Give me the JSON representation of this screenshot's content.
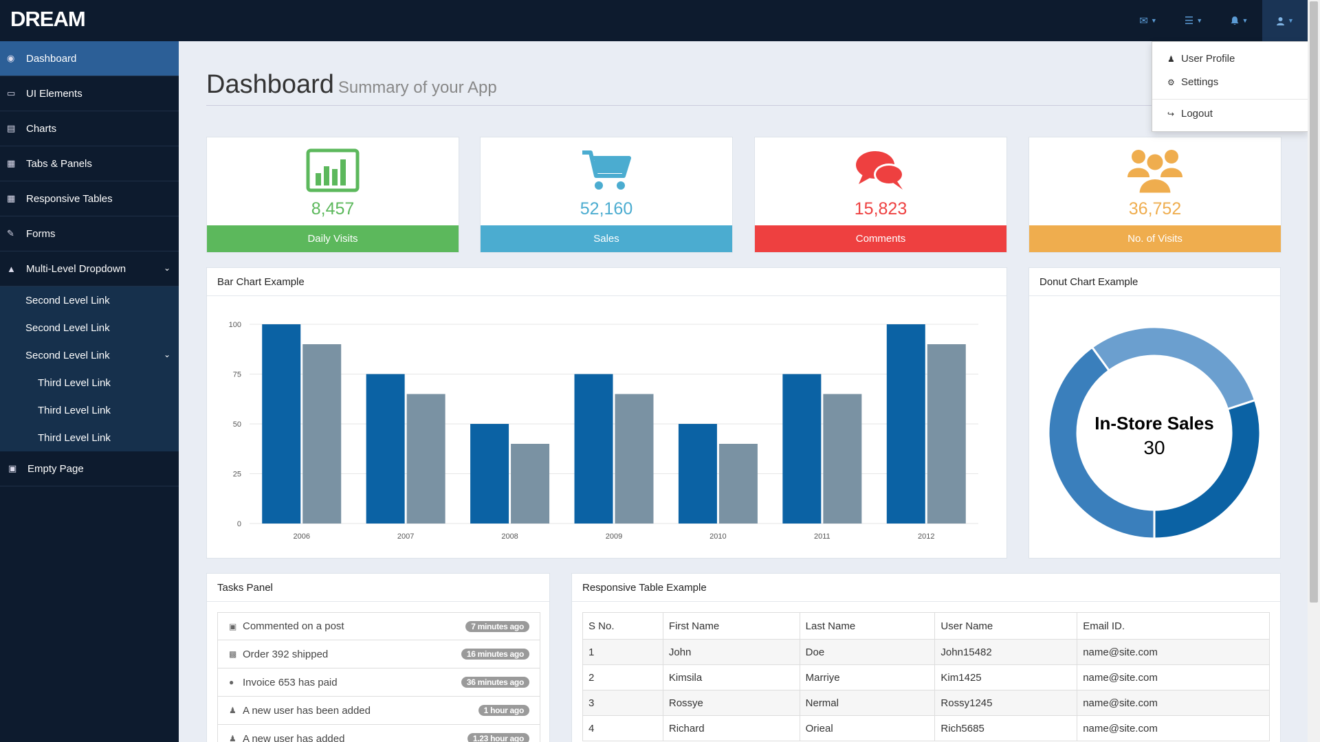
{
  "brand": "DREAM",
  "colors": {
    "topbar": "#0d1b2e",
    "accent": "#2c5f97",
    "green": "#5cb85c",
    "blue": "#4bacd0",
    "red": "#ee4040",
    "orange": "#efad4e"
  },
  "topnav": {
    "icons": [
      "envelope-icon",
      "tasks-icon",
      "bell-icon",
      "user-icon"
    ]
  },
  "user_menu": {
    "profile": "User Profile",
    "settings": "Settings",
    "logout": "Logout"
  },
  "sidebar": {
    "items": [
      {
        "label": "Dashboard",
        "icon": "dashboard-icon"
      },
      {
        "label": "UI Elements",
        "icon": "desktop-icon"
      },
      {
        "label": "Charts",
        "icon": "bar-chart-icon"
      },
      {
        "label": "Tabs & Panels",
        "icon": "tabs-icon"
      },
      {
        "label": "Responsive Tables",
        "icon": "table-icon"
      },
      {
        "label": "Forms",
        "icon": "edit-icon"
      },
      {
        "label": "Multi-Level Dropdown",
        "icon": "sitemap-icon"
      },
      {
        "label": "Empty Page",
        "icon": "file-icon"
      }
    ],
    "second_level": [
      "Second Level Link",
      "Second Level Link",
      "Second Level Link"
    ],
    "third_level": [
      "Third Level Link",
      "Third Level Link",
      "Third Level Link"
    ]
  },
  "header": {
    "title": "Dashboard",
    "subtitle": "Summary of your App"
  },
  "stats": [
    {
      "value": "8,457",
      "label": "Daily Visits",
      "color": "#5cb85c"
    },
    {
      "value": "52,160",
      "label": "Sales",
      "color": "#4bacd0"
    },
    {
      "value": "15,823",
      "label": "Comments",
      "color": "#ee4040"
    },
    {
      "value": "36,752",
      "label": "No. of Visits",
      "color": "#efad4e"
    }
  ],
  "bar_panel": {
    "title": "Bar Chart Example"
  },
  "donut_panel": {
    "title": "Donut Chart Example",
    "center_label": "In-Store Sales",
    "center_value": "30"
  },
  "chart_data": [
    {
      "type": "bar",
      "title": "Bar Chart Example",
      "categories": [
        "2006",
        "2007",
        "2008",
        "2009",
        "2010",
        "2011",
        "2012"
      ],
      "series": [
        {
          "values": [
            100,
            75,
            50,
            75,
            50,
            75,
            100
          ],
          "color": "#0b62a4"
        },
        {
          "values": [
            90,
            65,
            40,
            65,
            40,
            65,
            90
          ],
          "color": "#7a92a3"
        }
      ],
      "ylim": [
        0,
        100
      ],
      "yticks": [
        "0",
        "25",
        "50",
        "75",
        "100"
      ],
      "grid": true
    },
    {
      "type": "pie",
      "title": "Donut Chart Example",
      "slices": [
        {
          "value": 30,
          "color": "#0b62a4"
        },
        {
          "value": 30,
          "color": "#6b9fcf"
        },
        {
          "value": 40,
          "color": "#3a7fbc"
        }
      ],
      "center_label": "In-Store Sales",
      "center_value": "30"
    }
  ],
  "tasks": {
    "title": "Tasks Panel",
    "items": [
      {
        "text": "Commented on a post",
        "time": "7 minutes ago",
        "icon": "comment-icon"
      },
      {
        "text": "Order 392 shipped",
        "time": "16 minutes ago",
        "icon": "truck-icon"
      },
      {
        "text": "Invoice 653 has paid",
        "time": "36 minutes ago",
        "icon": "globe-icon"
      },
      {
        "text": "A new user has been added",
        "time": "1 hour ago",
        "icon": "user-icon"
      },
      {
        "text": "A new user has added",
        "time": "1.23 hour ago",
        "icon": "user-icon"
      }
    ]
  },
  "table": {
    "title": "Responsive Table Example",
    "headers": [
      "S No.",
      "First Name",
      "Last Name",
      "User Name",
      "Email ID."
    ],
    "rows": [
      [
        "1",
        "John",
        "Doe",
        "John15482",
        "name@site.com"
      ],
      [
        "2",
        "Kimsila",
        "Marriye",
        "Kim1425",
        "name@site.com"
      ],
      [
        "3",
        "Rossye",
        "Nermal",
        "Rossy1245",
        "name@site.com"
      ],
      [
        "4",
        "Richard",
        "Orieal",
        "Rich5685",
        "name@site.com"
      ]
    ]
  }
}
